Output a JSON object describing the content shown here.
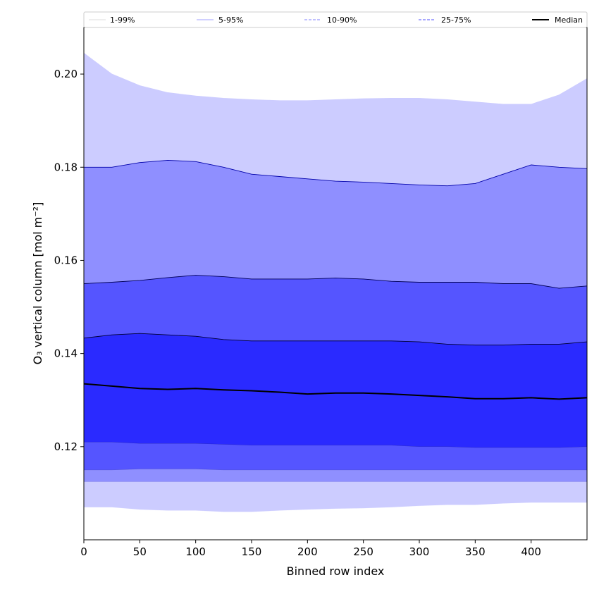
{
  "chart_data": {
    "type": "area",
    "title": "",
    "xlabel": "Binned row index",
    "ylabel": "O₃ vertical column [mol m⁻²]",
    "xlim": [
      0,
      450
    ],
    "ylim": [
      0.1,
      0.21
    ],
    "x_ticks": [
      0,
      50,
      100,
      150,
      200,
      250,
      300,
      350,
      400
    ],
    "y_ticks": [
      0.12,
      0.14,
      0.16,
      0.18,
      0.2
    ],
    "y_tick_labels": [
      "0.12",
      "0.14",
      "0.16",
      "0.18",
      "0.20"
    ],
    "grid": false,
    "legend_position": "top",
    "x": [
      0,
      25,
      50,
      75,
      100,
      125,
      150,
      175,
      200,
      225,
      250,
      275,
      300,
      325,
      350,
      375,
      400,
      425,
      450
    ],
    "bands": [
      {
        "name": "1-99%",
        "color": "#ccccff",
        "line_color": "#ccccff",
        "upper": [
          0.2045,
          0.2,
          0.1975,
          0.196,
          0.1953,
          0.1948,
          0.1945,
          0.1943,
          0.1943,
          0.1945,
          0.1947,
          0.1948,
          0.1948,
          0.1945,
          0.194,
          0.1935,
          0.1935,
          0.1955,
          0.199
        ],
        "lower": [
          0.107,
          0.107,
          0.1065,
          0.1063,
          0.1063,
          0.106,
          0.106,
          0.1063,
          0.1065,
          0.1067,
          0.1068,
          0.107,
          0.1073,
          0.1075,
          0.1075,
          0.1078,
          0.108,
          0.108,
          0.108
        ]
      },
      {
        "name": "5-95%",
        "color": "#8f8fff",
        "line_color": "#0000aa",
        "upper": [
          0.18,
          0.18,
          0.181,
          0.1815,
          0.1812,
          0.18,
          0.1785,
          0.178,
          0.1775,
          0.177,
          0.1768,
          0.1765,
          0.1762,
          0.176,
          0.1765,
          0.1785,
          0.1805,
          0.18,
          0.1797
        ],
        "lower": [
          0.1125,
          0.1125,
          0.1125,
          0.1125,
          0.1125,
          0.1125,
          0.1125,
          0.1125,
          0.1125,
          0.1125,
          0.1125,
          0.1125,
          0.1125,
          0.1125,
          0.1125,
          0.1125,
          0.1125,
          0.1125,
          0.1125
        ]
      },
      {
        "name": "10-90%",
        "color": "#5555ff",
        "line_color": "#000055",
        "upper": [
          0.155,
          0.1553,
          0.1557,
          0.1563,
          0.1568,
          0.1565,
          0.156,
          0.156,
          0.156,
          0.1562,
          0.156,
          0.1555,
          0.1553,
          0.1553,
          0.1553,
          0.155,
          0.155,
          0.154,
          0.1545
        ],
        "lower": [
          0.115,
          0.115,
          0.1152,
          0.1152,
          0.1152,
          0.115,
          0.115,
          0.115,
          0.115,
          0.115,
          0.115,
          0.115,
          0.115,
          0.115,
          0.115,
          0.115,
          0.115,
          0.115,
          0.115
        ]
      },
      {
        "name": "25-75%",
        "color": "#2a2aff",
        "line_color": "#000033",
        "upper": [
          0.1433,
          0.144,
          0.1443,
          0.144,
          0.1437,
          0.143,
          0.1427,
          0.1427,
          0.1427,
          0.1427,
          0.1427,
          0.1427,
          0.1425,
          0.142,
          0.1418,
          0.1418,
          0.142,
          0.142,
          0.1425
        ],
        "lower": [
          0.121,
          0.121,
          0.1207,
          0.1207,
          0.1207,
          0.1205,
          0.1203,
          0.1203,
          0.1203,
          0.1203,
          0.1203,
          0.1203,
          0.12,
          0.12,
          0.1198,
          0.1198,
          0.1198,
          0.1198,
          0.12
        ]
      }
    ],
    "median": {
      "name": "Median",
      "color": "#000000",
      "values": [
        0.1335,
        0.133,
        0.1325,
        0.1323,
        0.1325,
        0.1322,
        0.132,
        0.1317,
        0.1313,
        0.1315,
        0.1315,
        0.1313,
        0.131,
        0.1307,
        0.1303,
        0.1303,
        0.1305,
        0.1302,
        0.1305
      ]
    },
    "legend": [
      {
        "label": "1-99%",
        "color": "#dddddd",
        "dash": "solid"
      },
      {
        "label": "5-95%",
        "color": "#a0a0ff",
        "dash": "solid"
      },
      {
        "label": "10-90%",
        "color": "#8080ff",
        "dash": "dashed"
      },
      {
        "label": "25-75%",
        "color": "#5050ff",
        "dash": "dashed"
      },
      {
        "label": "Median",
        "color": "#000000",
        "dash": "solid"
      }
    ]
  }
}
